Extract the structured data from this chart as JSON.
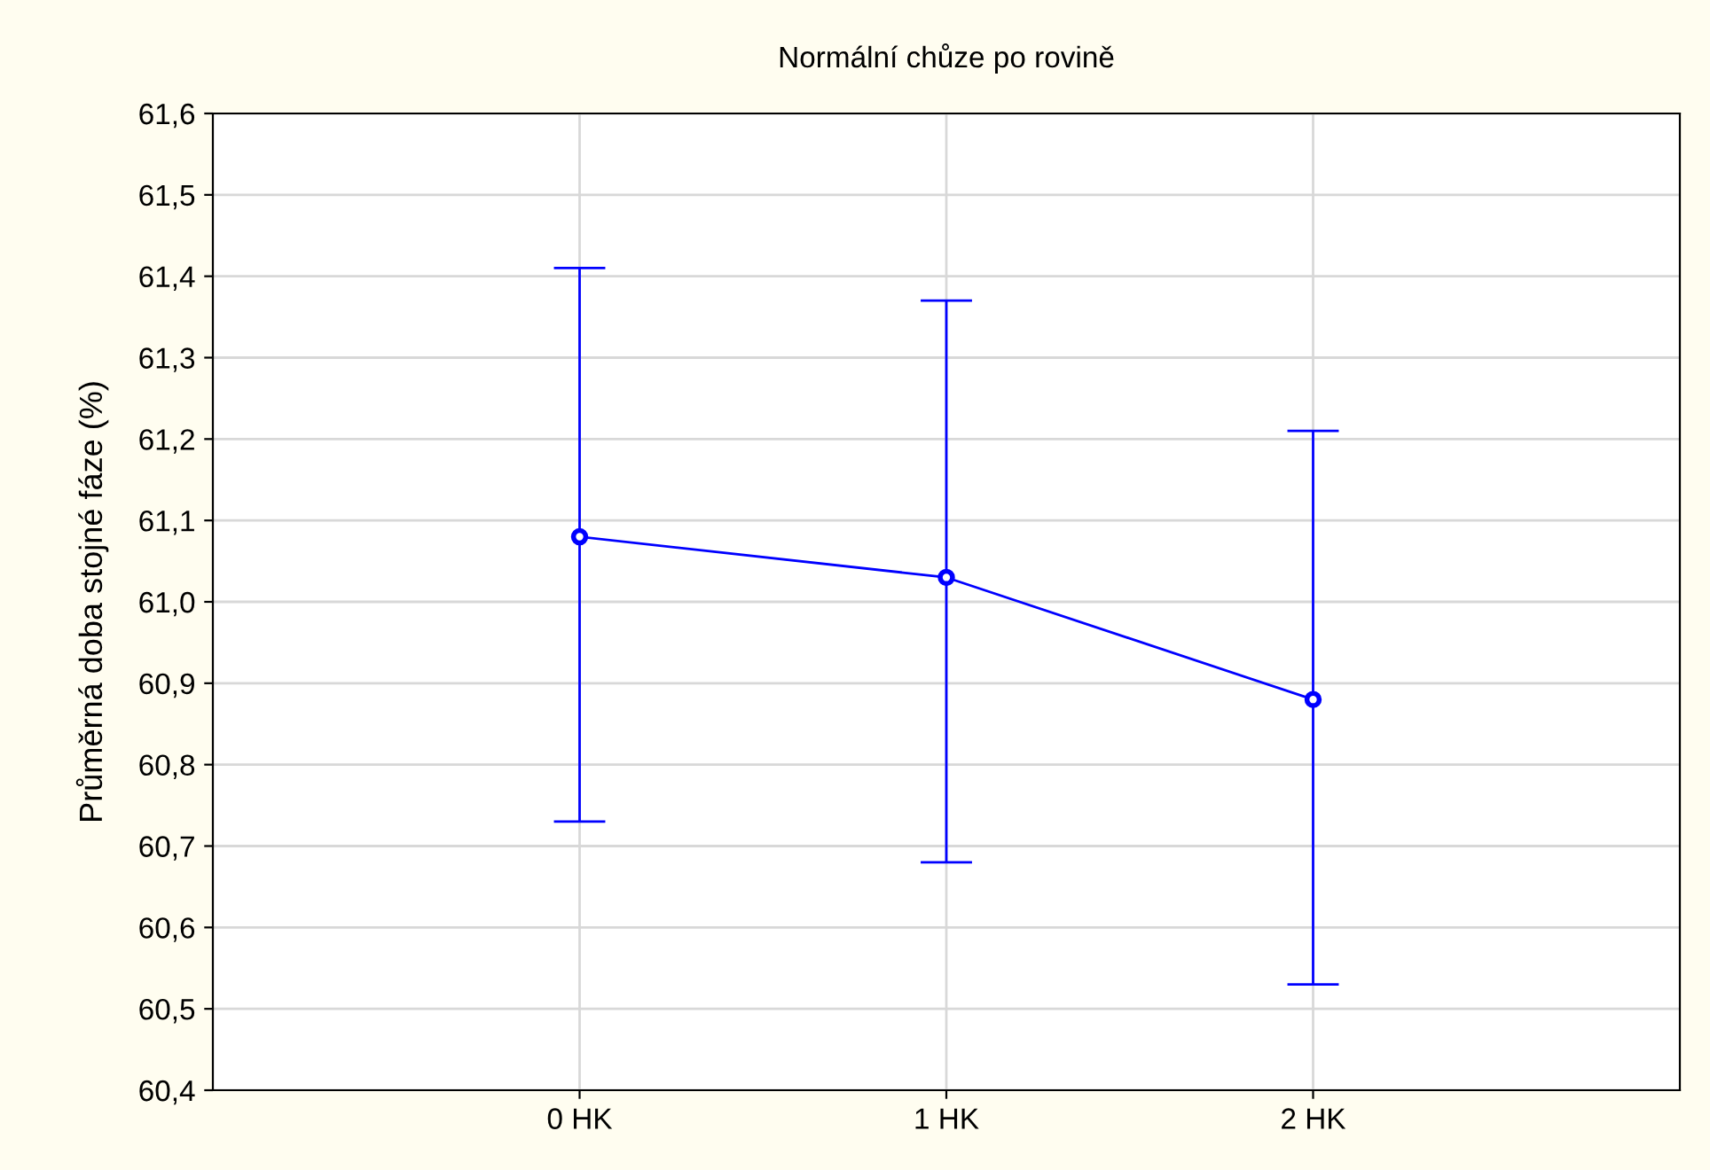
{
  "chart_data": {
    "type": "line",
    "title": "Normální chůze po rovině",
    "ylabel": "Průměrná doba stojné fáze (%)",
    "categories": [
      "0 HK",
      "1 HK",
      "2 HK"
    ],
    "series": [
      {
        "color": "#0000ff",
        "values": [
          61.08,
          61.03,
          60.88
        ],
        "errors": [
          [
            60.73,
            61.41
          ],
          [
            60.68,
            61.37
          ],
          [
            60.53,
            61.21
          ]
        ]
      }
    ],
    "ylim": [
      60.4,
      61.6
    ],
    "yticks": [
      {
        "value": 60.4,
        "label": "60,4"
      },
      {
        "value": 60.5,
        "label": "60,5"
      },
      {
        "value": 60.6,
        "label": "60,6"
      },
      {
        "value": 60.7,
        "label": "60,7"
      },
      {
        "value": 60.8,
        "label": "60,8"
      },
      {
        "value": 60.9,
        "label": "60,9"
      },
      {
        "value": 61.0,
        "label": "61,0"
      },
      {
        "value": 61.1,
        "label": "61,1"
      },
      {
        "value": 61.2,
        "label": "61,2"
      },
      {
        "value": 61.3,
        "label": "61,3"
      },
      {
        "value": 61.4,
        "label": "61,4"
      },
      {
        "value": 61.5,
        "label": "61,5"
      },
      {
        "value": 61.6,
        "label": "61,6"
      }
    ],
    "grid": true,
    "marker": "circle",
    "line_style": "solid",
    "legend": false
  }
}
